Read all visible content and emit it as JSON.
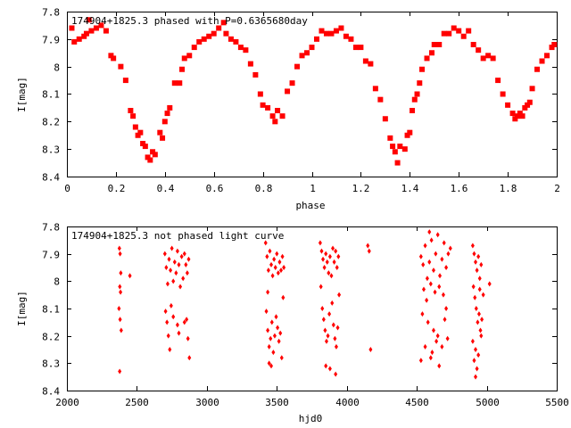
{
  "colors": {
    "marker": "#ff0000",
    "axis": "#000000",
    "background": "#ffffff"
  },
  "chart_data": [
    {
      "type": "scatter",
      "title": "174904+1825.3 phased with P=0.6365680day",
      "xlabel": "phase",
      "ylabel": "I[mag]",
      "xlim": [
        0,
        2
      ],
      "ylim": [
        7.8,
        8.4
      ],
      "y_inverted": true,
      "grid": false,
      "marker": "filled-square",
      "x_ticks": [
        "0",
        "0.2",
        "0.4",
        "0.6",
        "0.8",
        "1",
        "1.2",
        "1.4",
        "1.6",
        "1.8",
        "2"
      ],
      "y_ticks": [
        "7.8",
        "7.9",
        "8",
        "8.1",
        "8.2",
        "8.3",
        "8.4"
      ],
      "points": [
        [
          0.02,
          7.86
        ],
        [
          0.03,
          7.91
        ],
        [
          0.05,
          7.9
        ],
        [
          0.07,
          7.89
        ],
        [
          0.08,
          7.88
        ],
        [
          0.09,
          7.83
        ],
        [
          0.1,
          7.87
        ],
        [
          0.12,
          7.86
        ],
        [
          0.14,
          7.85
        ],
        [
          0.16,
          7.87
        ],
        [
          0.18,
          7.96
        ],
        [
          0.19,
          7.97
        ],
        [
          0.22,
          8.0
        ],
        [
          0.24,
          8.05
        ],
        [
          0.26,
          8.16
        ],
        [
          0.27,
          8.18
        ],
        [
          0.28,
          8.22
        ],
        [
          0.29,
          8.25
        ],
        [
          0.3,
          8.24
        ],
        [
          0.31,
          8.28
        ],
        [
          0.32,
          8.29
        ],
        [
          0.33,
          8.33
        ],
        [
          0.34,
          8.34
        ],
        [
          0.35,
          8.31
        ],
        [
          0.36,
          8.32
        ],
        [
          0.38,
          8.24
        ],
        [
          0.39,
          8.26
        ],
        [
          0.4,
          8.2
        ],
        [
          0.41,
          8.17
        ],
        [
          0.42,
          8.15
        ],
        [
          0.44,
          8.06
        ],
        [
          0.46,
          8.06
        ],
        [
          0.47,
          8.01
        ],
        [
          0.48,
          7.97
        ],
        [
          0.5,
          7.96
        ],
        [
          0.52,
          7.93
        ],
        [
          0.54,
          7.91
        ],
        [
          0.56,
          7.9
        ],
        [
          0.58,
          7.89
        ],
        [
          0.6,
          7.88
        ],
        [
          0.62,
          7.86
        ],
        [
          0.64,
          7.84
        ],
        [
          0.65,
          7.88
        ],
        [
          0.67,
          7.9
        ],
        [
          0.69,
          7.91
        ],
        [
          0.71,
          7.93
        ],
        [
          0.73,
          7.94
        ],
        [
          0.75,
          7.99
        ],
        [
          0.77,
          8.03
        ],
        [
          0.79,
          8.1
        ],
        [
          0.8,
          8.14
        ],
        [
          0.82,
          8.15
        ],
        [
          0.84,
          8.18
        ],
        [
          0.85,
          8.2
        ],
        [
          0.86,
          8.16
        ],
        [
          0.88,
          8.18
        ],
        [
          0.9,
          8.09
        ],
        [
          0.92,
          8.06
        ],
        [
          0.94,
          8.0
        ],
        [
          0.96,
          7.96
        ],
        [
          0.98,
          7.95
        ],
        [
          1.0,
          7.93
        ],
        [
          1.02,
          7.9
        ],
        [
          1.04,
          7.87
        ],
        [
          1.06,
          7.88
        ],
        [
          1.08,
          7.88
        ],
        [
          1.1,
          7.87
        ],
        [
          1.12,
          7.86
        ],
        [
          1.14,
          7.89
        ],
        [
          1.16,
          7.9
        ],
        [
          1.18,
          7.93
        ],
        [
          1.2,
          7.93
        ],
        [
          1.22,
          7.98
        ],
        [
          1.24,
          7.99
        ],
        [
          1.26,
          8.08
        ],
        [
          1.28,
          8.12
        ],
        [
          1.3,
          8.19
        ],
        [
          1.32,
          8.26
        ],
        [
          1.33,
          8.29
        ],
        [
          1.34,
          8.31
        ],
        [
          1.35,
          8.35
        ],
        [
          1.36,
          8.29
        ],
        [
          1.38,
          8.3
        ],
        [
          1.39,
          8.25
        ],
        [
          1.4,
          8.24
        ],
        [
          1.41,
          8.16
        ],
        [
          1.42,
          8.12
        ],
        [
          1.43,
          8.1
        ],
        [
          1.44,
          8.06
        ],
        [
          1.45,
          8.01
        ],
        [
          1.47,
          7.97
        ],
        [
          1.49,
          7.95
        ],
        [
          1.5,
          7.92
        ],
        [
          1.52,
          7.92
        ],
        [
          1.54,
          7.88
        ],
        [
          1.56,
          7.88
        ],
        [
          1.58,
          7.86
        ],
        [
          1.6,
          7.87
        ],
        [
          1.62,
          7.89
        ],
        [
          1.64,
          7.87
        ],
        [
          1.66,
          7.92
        ],
        [
          1.68,
          7.94
        ],
        [
          1.7,
          7.97
        ],
        [
          1.72,
          7.96
        ],
        [
          1.74,
          7.97
        ],
        [
          1.76,
          8.05
        ],
        [
          1.78,
          8.1
        ],
        [
          1.8,
          8.14
        ],
        [
          1.82,
          8.17
        ],
        [
          1.83,
          8.19
        ],
        [
          1.84,
          8.18
        ],
        [
          1.85,
          8.17
        ],
        [
          1.86,
          8.18
        ],
        [
          1.87,
          8.15
        ],
        [
          1.88,
          8.14
        ],
        [
          1.89,
          8.13
        ],
        [
          1.9,
          8.08
        ],
        [
          1.92,
          8.01
        ],
        [
          1.94,
          7.98
        ],
        [
          1.96,
          7.96
        ],
        [
          1.98,
          7.93
        ],
        [
          1.99,
          7.92
        ]
      ]
    },
    {
      "type": "scatter",
      "title": "174904+1825.3 not phased light curve",
      "xlabel": "hjd0",
      "ylabel": "I[mag]",
      "xlim": [
        2000,
        5500
      ],
      "ylim": [
        7.8,
        8.4
      ],
      "y_inverted": true,
      "grid": false,
      "marker": "filled-diamond",
      "x_ticks": [
        "2000",
        "2500",
        "3000",
        "3500",
        "4000",
        "4500",
        "5000",
        "5500"
      ],
      "y_ticks": [
        "7.8",
        "7.9",
        "8",
        "8.1",
        "8.2",
        "8.3",
        "8.4"
      ],
      "points": [
        [
          2375,
          7.88
        ],
        [
          2380,
          7.9
        ],
        [
          2385,
          7.97
        ],
        [
          2378,
          8.02
        ],
        [
          2383,
          8.04
        ],
        [
          2372,
          8.1
        ],
        [
          2380,
          8.14
        ],
        [
          2388,
          8.18
        ],
        [
          2377,
          8.33
        ],
        [
          2450,
          7.98
        ],
        [
          2700,
          7.9
        ],
        [
          2710,
          7.95
        ],
        [
          2720,
          8.01
        ],
        [
          2730,
          7.92
        ],
        [
          2740,
          7.96
        ],
        [
          2750,
          7.88
        ],
        [
          2760,
          8.0
        ],
        [
          2770,
          7.93
        ],
        [
          2780,
          7.97
        ],
        [
          2790,
          7.89
        ],
        [
          2800,
          7.94
        ],
        [
          2810,
          8.02
        ],
        [
          2820,
          7.91
        ],
        [
          2830,
          7.99
        ],
        [
          2840,
          7.9
        ],
        [
          2850,
          7.94
        ],
        [
          2860,
          7.97
        ],
        [
          2870,
          7.92
        ],
        [
          2705,
          8.11
        ],
        [
          2715,
          8.15
        ],
        [
          2725,
          8.2
        ],
        [
          2735,
          8.25
        ],
        [
          2760,
          8.13
        ],
        [
          2790,
          8.16
        ],
        [
          2840,
          8.15
        ],
        [
          2865,
          8.21
        ],
        [
          2875,
          8.28
        ],
        [
          2855,
          8.14
        ],
        [
          2800,
          8.19
        ],
        [
          2745,
          8.09
        ],
        [
          3420,
          7.86
        ],
        [
          3430,
          7.91
        ],
        [
          3440,
          7.96
        ],
        [
          3450,
          7.89
        ],
        [
          3460,
          7.94
        ],
        [
          3470,
          7.98
        ],
        [
          3480,
          7.92
        ],
        [
          3490,
          7.95
        ],
        [
          3500,
          7.9
        ],
        [
          3510,
          7.97
        ],
        [
          3520,
          7.93
        ],
        [
          3530,
          7.96
        ],
        [
          3540,
          7.91
        ],
        [
          3550,
          7.95
        ],
        [
          3425,
          8.11
        ],
        [
          3435,
          8.18
        ],
        [
          3445,
          8.24
        ],
        [
          3455,
          8.21
        ],
        [
          3465,
          8.15
        ],
        [
          3475,
          8.26
        ],
        [
          3485,
          8.2
        ],
        [
          3495,
          8.13
        ],
        [
          3505,
          8.17
        ],
        [
          3515,
          8.22
        ],
        [
          3525,
          8.19
        ],
        [
          3535,
          8.28
        ],
        [
          3445,
          8.3
        ],
        [
          3460,
          8.31
        ],
        [
          3545,
          8.06
        ],
        [
          3435,
          8.04
        ],
        [
          3810,
          7.86
        ],
        [
          3820,
          7.89
        ],
        [
          3830,
          7.92
        ],
        [
          3840,
          7.95
        ],
        [
          3850,
          7.9
        ],
        [
          3860,
          7.93
        ],
        [
          3870,
          7.97
        ],
        [
          3880,
          7.91
        ],
        [
          3890,
          7.98
        ],
        [
          3900,
          7.88
        ],
        [
          3910,
          7.93
        ],
        [
          3920,
          7.89
        ],
        [
          3930,
          7.95
        ],
        [
          3940,
          7.91
        ],
        [
          3815,
          8.02
        ],
        [
          3825,
          8.1
        ],
        [
          3835,
          8.14
        ],
        [
          3845,
          8.18
        ],
        [
          3855,
          8.22
        ],
        [
          3865,
          8.2
        ],
        [
          3875,
          8.12
        ],
        [
          3895,
          8.08
        ],
        [
          3905,
          8.16
        ],
        [
          3915,
          8.21
        ],
        [
          3925,
          8.24
        ],
        [
          3935,
          8.17
        ],
        [
          3850,
          8.31
        ],
        [
          3880,
          8.32
        ],
        [
          3920,
          8.34
        ],
        [
          3945,
          8.05
        ],
        [
          4150,
          7.87
        ],
        [
          4160,
          7.89
        ],
        [
          4170,
          8.25
        ],
        [
          4530,
          7.91
        ],
        [
          4545,
          7.94
        ],
        [
          4560,
          7.87
        ],
        [
          4575,
          7.99
        ],
        [
          4590,
          7.93
        ],
        [
          4605,
          7.85
        ],
        [
          4620,
          7.96
        ],
        [
          4635,
          7.9
        ],
        [
          4650,
          7.83
        ],
        [
          4665,
          7.98
        ],
        [
          4680,
          7.92
        ],
        [
          4695,
          7.86
        ],
        [
          4710,
          7.95
        ],
        [
          4725,
          7.9
        ],
        [
          4740,
          7.88
        ],
        [
          4550,
          8.03
        ],
        [
          4570,
          8.07
        ],
        [
          4600,
          8.01
        ],
        [
          4630,
          8.04
        ],
        [
          4660,
          8.02
        ],
        [
          4690,
          8.05
        ],
        [
          4540,
          8.12
        ],
        [
          4580,
          8.15
        ],
        [
          4620,
          8.18
        ],
        [
          4650,
          8.2
        ],
        [
          4700,
          8.14
        ],
        [
          4560,
          8.24
        ],
        [
          4610,
          8.26
        ],
        [
          4640,
          8.22
        ],
        [
          4680,
          8.24
        ],
        [
          4530,
          8.29
        ],
        [
          4600,
          8.28
        ],
        [
          4660,
          8.31
        ],
        [
          4710,
          8.1
        ],
        [
          4590,
          7.82
        ],
        [
          4720,
          8.21
        ],
        [
          4900,
          7.87
        ],
        [
          4910,
          7.9
        ],
        [
          4920,
          7.93
        ],
        [
          4930,
          7.96
        ],
        [
          4940,
          7.91
        ],
        [
          4950,
          7.99
        ],
        [
          4960,
          7.94
        ],
        [
          4905,
          8.02
        ],
        [
          4915,
          8.06
        ],
        [
          4925,
          8.1
        ],
        [
          4935,
          8.15
        ],
        [
          4945,
          8.12
        ],
        [
          4955,
          8.18
        ],
        [
          4965,
          8.14
        ],
        [
          4975,
          8.05
        ],
        [
          5020,
          8.01
        ],
        [
          4900,
          8.22
        ],
        [
          4920,
          8.25
        ],
        [
          4940,
          8.27
        ],
        [
          4930,
          8.32
        ],
        [
          4920,
          8.35
        ],
        [
          4910,
          8.29
        ],
        [
          4960,
          8.2
        ],
        [
          4950,
          8.03
        ]
      ]
    }
  ]
}
